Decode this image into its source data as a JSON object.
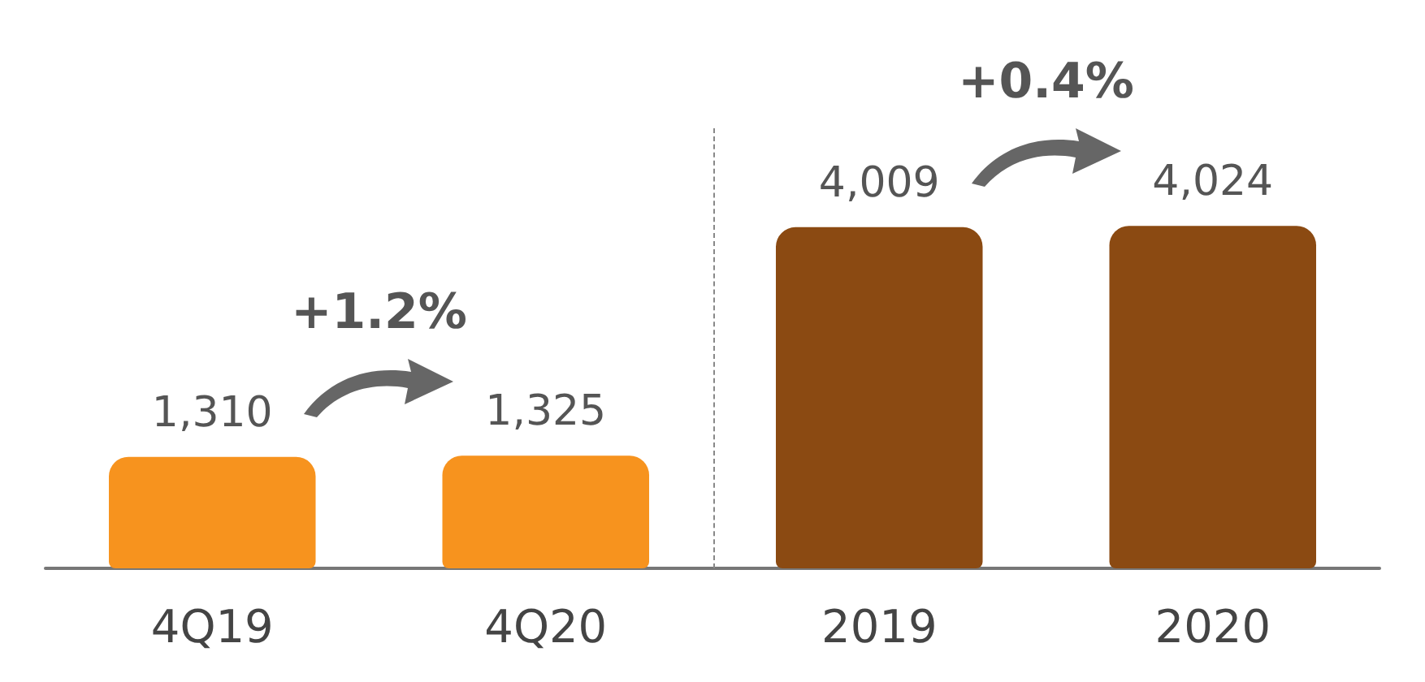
{
  "chart_data": {
    "type": "bar",
    "categories": [
      "4Q19",
      "4Q20",
      "2019",
      "2020"
    ],
    "values": [
      1310,
      1325,
      4009,
      4024
    ],
    "colors": [
      "#f7931e",
      "#f7931e",
      "#8b4a12",
      "#8b4a12"
    ],
    "value_labels": [
      "1,310",
      "1,325",
      "4,009",
      "4,024"
    ],
    "annotations": [
      "+1.2%",
      "+0.4%"
    ]
  }
}
